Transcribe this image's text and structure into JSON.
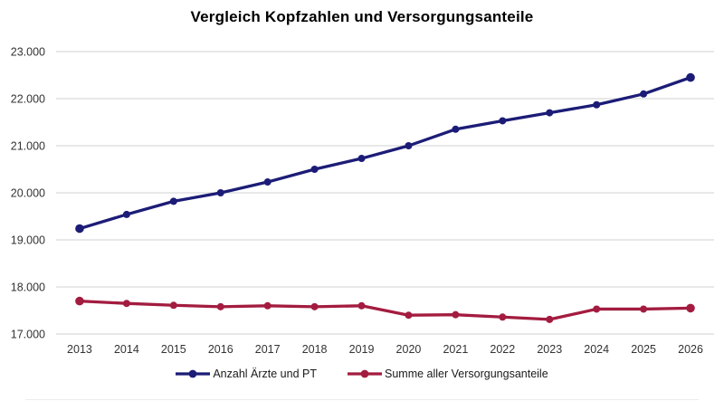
{
  "chart_data": {
    "type": "line",
    "title": "Vergleich Kopfzahlen und Versorgungsanteile",
    "categories": [
      "2013",
      "2014",
      "2015",
      "2016",
      "2017",
      "2018",
      "2019",
      "2020",
      "2021",
      "2022",
      "2023",
      "2024",
      "2025",
      "2026"
    ],
    "series": [
      {
        "name": "Anzahl Ärzte und PT",
        "color": "#1C1C77",
        "marker": "circle",
        "values": [
          19240,
          19540,
          19820,
          20000,
          20230,
          20500,
          20730,
          21000,
          21350,
          21530,
          21700,
          21870,
          22100,
          22450
        ]
      },
      {
        "name": "Summe aller Versorgungsanteile",
        "color": "#A31C3F",
        "marker": "circle",
        "values": [
          17700,
          17650,
          17610,
          17580,
          17600,
          17580,
          17600,
          17400,
          17410,
          17360,
          17310,
          17530,
          17530,
          17550
        ]
      }
    ],
    "xlabel": "",
    "ylabel": "",
    "ylim": [
      17000,
      23000
    ],
    "ytick_step": 1000,
    "ytick_labels": [
      "17.000",
      "18.000",
      "19.000",
      "20.000",
      "21.000",
      "22.000",
      "23.000"
    ],
    "grid": true,
    "legend_position": "bottom",
    "colors": {
      "gridline": "#D9D9D9",
      "axis_text": "#333333",
      "title_text": "#000000",
      "background": "#FFFFFF"
    }
  }
}
